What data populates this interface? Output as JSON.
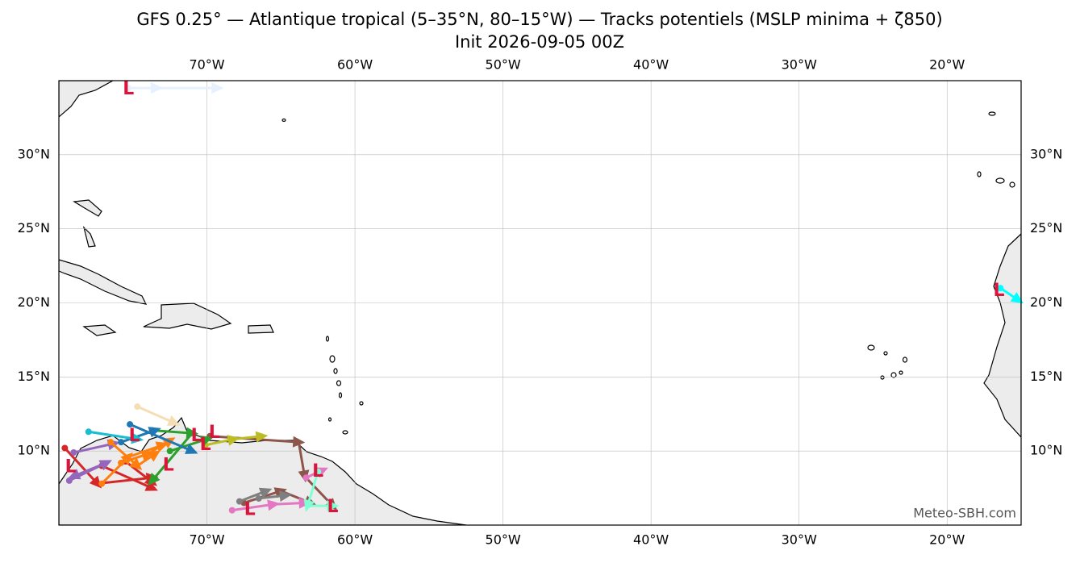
{
  "map": {
    "title": "GFS 0.25° — Atlantique tropical (5–35°N, 80–15°W) — Tracks potentiels (MSLP minima + ζ850)",
    "subtitle": "Init 2026-09-05 00Z",
    "watermark": "Meteo-SBH.com",
    "xlim": [
      -80,
      -15
    ],
    "ylim": [
      5,
      35
    ],
    "xticks": [
      {
        "value": -70,
        "label": "70°W"
      },
      {
        "value": -60,
        "label": "60°W"
      },
      {
        "value": -50,
        "label": "50°W"
      },
      {
        "value": -40,
        "label": "40°W"
      },
      {
        "value": -30,
        "label": "30°W"
      },
      {
        "value": -20,
        "label": "20°W"
      }
    ],
    "yticks": [
      {
        "value": 10,
        "label": "10°N"
      },
      {
        "value": 15,
        "label": "15°N"
      },
      {
        "value": 20,
        "label": "20°N"
      },
      {
        "value": 25,
        "label": "25°N"
      },
      {
        "value": 30,
        "label": "30°N"
      }
    ],
    "grid": true,
    "tracks": [
      {
        "color": "#e6f0ff",
        "lon": [
          -75.3,
          -73.4,
          -69.3
        ],
        "lat": [
          34.5,
          34.5,
          34.5
        ]
      },
      {
        "color": "#00ffff",
        "lon": [
          -16.4,
          -15.2
        ],
        "lat": [
          21.0,
          20.2
        ]
      },
      {
        "color": "#8c564b",
        "lon": [
          -69.8,
          -63.8,
          -63.4,
          -61.5
        ],
        "lat": [
          11.0,
          10.6,
          8.3,
          6.3
        ]
      },
      {
        "color": "#8c564b",
        "lon": [
          -67.5,
          -65.0,
          -63.0
        ],
        "lat": [
          6.5,
          7.3,
          6.5
        ]
      },
      {
        "color": "#bcbd22",
        "lon": [
          -70.1,
          -68.2,
          -66.3
        ],
        "lat": [
          10.4,
          10.8,
          11.0
        ]
      },
      {
        "color": "#e377c2",
        "lon": [
          -68.3,
          -65.5,
          -63.4
        ],
        "lat": [
          6.0,
          6.4,
          6.5
        ]
      },
      {
        "color": "#e377c2",
        "lon": [
          -63.3,
          -62.2
        ],
        "lat": [
          8.2,
          8.7
        ]
      },
      {
        "color": "#7fffd4",
        "lon": [
          -62.5,
          -63.2,
          -61.5
        ],
        "lat": [
          8.6,
          6.3,
          6.3
        ]
      },
      {
        "color": "#7f7f7f",
        "lon": [
          -67.8,
          -66.0
        ],
        "lat": [
          6.6,
          7.3
        ]
      },
      {
        "color": "#7f7f7f",
        "lon": [
          -66.5,
          -64.7
        ],
        "lat": [
          6.8,
          7.0
        ]
      },
      {
        "color": "#d62728",
        "lon": [
          -79.6,
          -77.4,
          -73.7
        ],
        "lat": [
          10.2,
          7.8,
          8.2
        ]
      },
      {
        "color": "#d62728",
        "lon": [
          -77.1,
          -73.7
        ],
        "lat": [
          9.0,
          7.5
        ]
      },
      {
        "color": "#d62728",
        "lon": [
          -75.5,
          -73.7
        ],
        "lat": [
          9.3,
          7.9
        ]
      },
      {
        "color": "#9467bd",
        "lon": [
          -79.0,
          -76.3
        ],
        "lat": [
          9.9,
          10.5
        ]
      },
      {
        "color": "#9467bd",
        "lon": [
          -79.3,
          -76.8,
          -79.0
        ],
        "lat": [
          8.0,
          9.2,
          8.3
        ]
      },
      {
        "color": "#ff7f0e",
        "lon": [
          -77.1,
          -75.3,
          -73.0
        ],
        "lat": [
          7.8,
          9.6,
          10.4
        ]
      },
      {
        "color": "#ff7f0e",
        "lon": [
          -76.5,
          -74.7,
          -73.5
        ],
        "lat": [
          10.6,
          9.0,
          9.8
        ]
      },
      {
        "color": "#ff7f0e",
        "lon": [
          -75.8,
          -74.0,
          -72.5
        ],
        "lat": [
          9.2,
          9.8,
          10.7
        ]
      },
      {
        "color": "#2ca02c",
        "lon": [
          -73.7,
          -71.0,
          -73.7
        ],
        "lat": [
          11.4,
          11.2,
          8.0
        ]
      },
      {
        "color": "#2ca02c",
        "lon": [
          -72.5,
          -70.0
        ],
        "lat": [
          10.0,
          10.8
        ]
      },
      {
        "color": "#1f77b4",
        "lon": [
          -75.2,
          -71.0
        ],
        "lat": [
          11.8,
          10.0
        ]
      },
      {
        "color": "#1f77b4",
        "lon": [
          -75.8,
          -73.5
        ],
        "lat": [
          10.6,
          11.4
        ]
      },
      {
        "color": "#17becf",
        "lon": [
          -78.0,
          -74.7
        ],
        "lat": [
          11.3,
          10.8
        ]
      },
      {
        "color": "#f5deb3",
        "lon": [
          -74.7,
          -72.2
        ],
        "lat": [
          13.0,
          11.9
        ]
      }
    ],
    "lows": [
      {
        "label": "L",
        "lon": -75.3,
        "lat": 34.4
      },
      {
        "label": "L",
        "lon": -16.5,
        "lat": 20.8
      },
      {
        "label": "L",
        "lon": -70.7,
        "lat": 11.0
      },
      {
        "label": "L",
        "lon": -70.1,
        "lat": 10.4
      },
      {
        "label": "L",
        "lon": -69.5,
        "lat": 11.2
      },
      {
        "label": "L",
        "lon": -72.6,
        "lat": 9.0
      },
      {
        "label": "L",
        "lon": -79.2,
        "lat": 8.9
      },
      {
        "label": "L",
        "lon": -74.9,
        "lat": 11.0
      },
      {
        "label": "L",
        "lon": -62.5,
        "lat": 8.6
      },
      {
        "label": "L",
        "lon": -61.5,
        "lat": 6.2
      },
      {
        "label": "L",
        "lon": -67.1,
        "lat": 6.0
      }
    ]
  }
}
